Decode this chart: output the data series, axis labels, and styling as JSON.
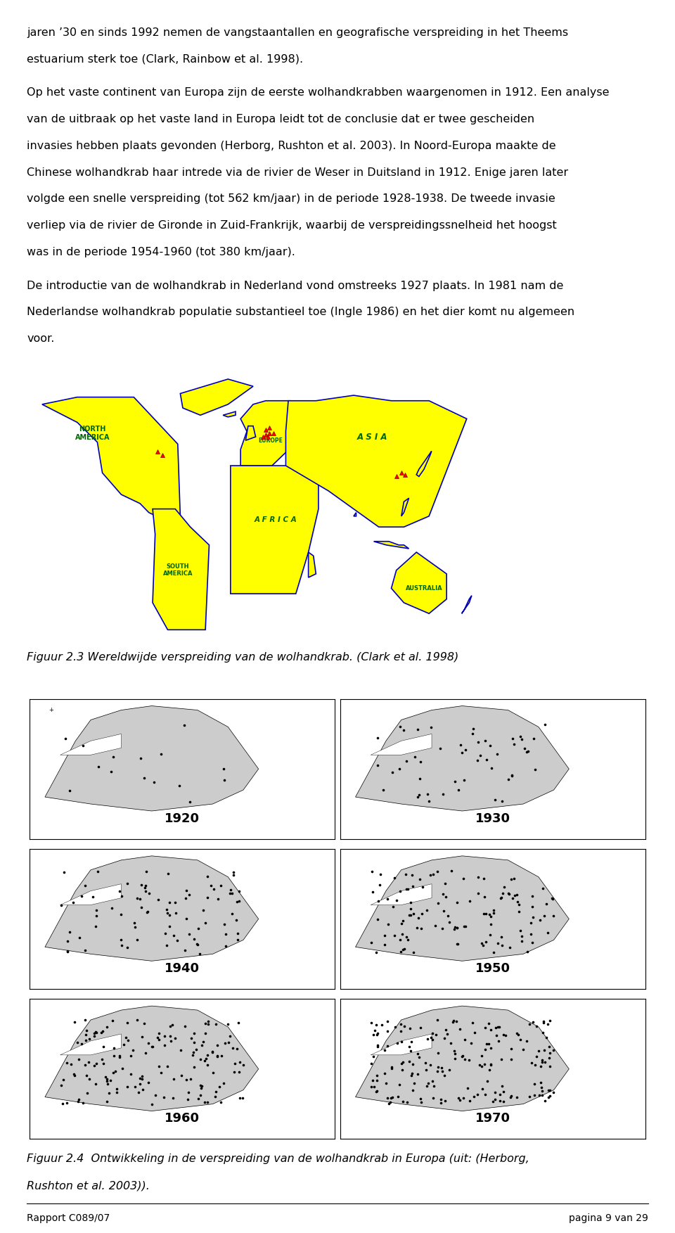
{
  "page_width": 9.6,
  "page_height": 17.53,
  "background_color": "#ffffff",
  "text_color": "#000000",
  "body_fontsize": 11.5,
  "footer_fontsize": 10,
  "paragraphs": [
    "jaren ’30 en sinds 1992 nemen de vangstaantallen en geografische verspreiding in het Theems estuarium sterk toe (Clark, Rainbow et al. 1998).",
    "Op het vaste continent van Europa zijn de eerste wolhandkrabben waargenomen in 1912. Een analyse van de uitbraak op het vaste land in Europa leidt tot de conclusie dat er twee gescheiden invasies hebben plaats gevonden (Herborg, Rushton et al. 2003). In Noord-Europa maakte de Chinese wolhandkrab haar intrede via de rivier de Weser in Duitsland in 1912. Enige jaren later volgde een snelle verspreiding (tot 562 km/jaar) in de periode 1928-1938. De tweede invasie verliep via de rivier de Gironde in Zuid-Frankrijk, waarbij de verspreidingssnelheid het hoogst was in de periode 1954-1960 (tot 380 km/jaar).",
    "De introductie van de wolhandkrab in Nederland vond omstreeks 1927 plaats. In 1981 nam de Nederlandse wolhandkrab populatie substantieel toe (Ingle 1986) en het dier komt nu algemeen voor."
  ],
  "fig23_caption": "Figuur 2.3 Wereldwijde verspreiding van de wolhandkrab. (Clark et al. 1998)",
  "fig24_caption": "Figuur 2.4  Ontwikkeling in de verspreiding van de wolhandkrab in Europa (uit: (Herborg,\nRushton et al. 2003)).",
  "footer_left": "Rapport C089/07",
  "footer_right": "pagina 9 van 29",
  "year_labels_fig24": [
    "1920",
    "1930",
    "1940",
    "1950",
    "1960",
    "1970"
  ]
}
